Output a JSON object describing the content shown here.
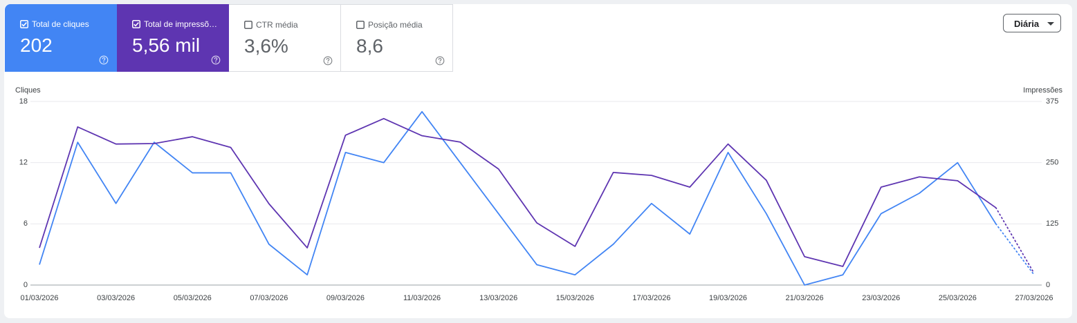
{
  "metrics": [
    {
      "label": "Total de cliques",
      "value": "202",
      "selected": true,
      "color": "#4285f4"
    },
    {
      "label": "Total de impressõ…",
      "value": "5,56 mil",
      "selected": true,
      "color": "#5e35b1"
    },
    {
      "label": "CTR média",
      "value": "3,6%",
      "selected": false,
      "color": "#ffffff"
    },
    {
      "label": "Posição média",
      "value": "8,6",
      "selected": false,
      "color": "#ffffff"
    }
  ],
  "period_selector": "Diária",
  "chart_data": {
    "type": "line",
    "ylabel": "Cliques",
    "y2label": "Impressões",
    "categories": [
      "01/03/2026",
      null,
      "03/03/2026",
      null,
      "05/03/2026",
      null,
      "07/03/2026",
      null,
      "09/03/2026",
      null,
      "11/03/2026",
      null,
      "13/03/2026",
      null,
      "15/03/2026",
      null,
      "17/03/2026",
      null,
      "19/03/2026",
      null,
      "21/03/2026",
      null,
      "23/03/2026",
      null,
      "25/03/2026",
      null,
      "27/03/2026"
    ],
    "series": [
      {
        "color": "#4285f4",
        "axis": "y",
        "values": [
          2,
          14,
          8,
          14,
          11,
          11,
          4,
          1,
          13,
          12,
          17,
          12,
          7,
          2,
          1,
          4,
          8,
          5,
          13,
          7,
          0,
          1,
          7,
          9,
          12,
          6,
          1
        ]
      },
      {
        "color": "#5e35b1",
        "axis": "y2",
        "values": [
          76,
          323,
          288,
          289,
          303,
          281,
          166,
          76,
          306,
          340,
          305,
          292,
          237,
          127,
          79,
          230,
          224,
          200,
          288,
          214,
          58,
          38,
          200,
          221,
          213,
          158,
          24
        ]
      }
    ],
    "last_segment_dotted": true,
    "ylim": [
      0,
      18
    ],
    "yticks": [
      0,
      6,
      12,
      18
    ],
    "y2lim": [
      0,
      375
    ],
    "y2ticks": [
      0,
      125,
      250,
      375
    ],
    "grid": true
  }
}
